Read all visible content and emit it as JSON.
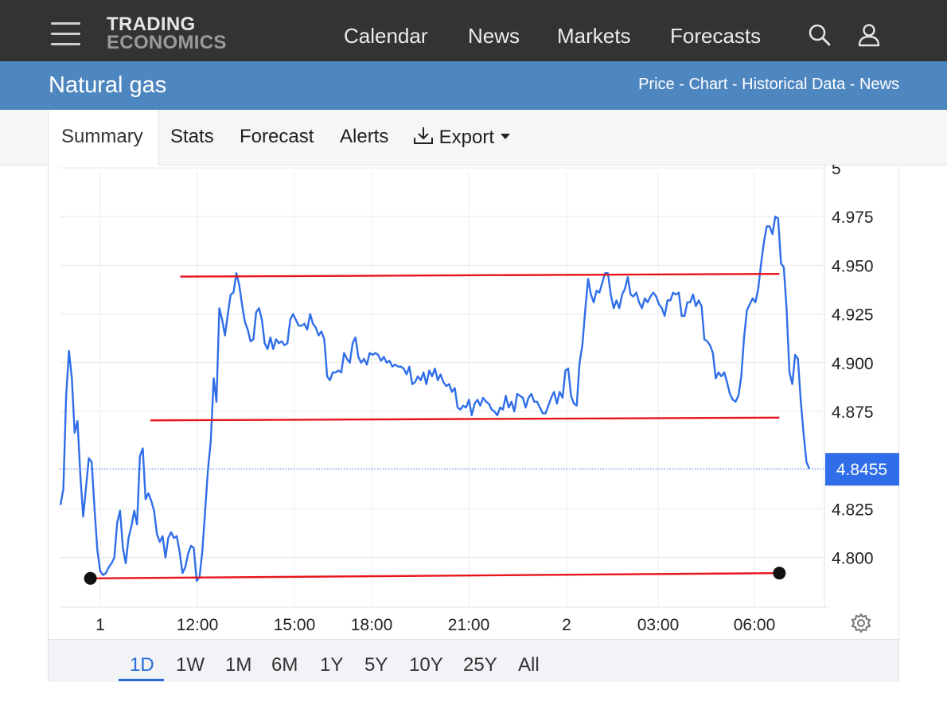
{
  "header": {
    "logo_line1": "TRADING",
    "logo_line2": "ECONOMICS",
    "nav": [
      "Calendar",
      "News",
      "Markets",
      "Forecasts"
    ]
  },
  "title_bar": {
    "title": "Natural gas",
    "links": [
      "Price",
      "Chart",
      "Historical Data",
      "News"
    ],
    "separator": " - "
  },
  "tabs": {
    "items": [
      "Summary",
      "Stats",
      "Forecast",
      "Alerts"
    ],
    "export_label": "Export",
    "active": "Summary"
  },
  "ranges": {
    "items": [
      "1D",
      "1W",
      "1M",
      "6M",
      "1Y",
      "5Y",
      "10Y",
      "25Y",
      "All"
    ],
    "active": "1D"
  },
  "colors": {
    "topbar": "#333333",
    "bluebar": "#4e86c0",
    "series": "#2f6ee8",
    "trendlines": "#e8141c",
    "last_price_badge": "#2f6ee8"
  },
  "chart_data": {
    "type": "line",
    "series": [
      {
        "values": [
          4.827,
          4.835,
          4.883,
          4.906,
          4.892,
          4.864,
          4.87,
          4.842,
          4.821,
          4.836,
          4.851,
          4.849,
          4.825,
          4.804,
          4.793,
          4.791,
          4.792,
          4.795,
          4.797,
          4.8,
          4.818,
          4.824,
          4.805,
          4.797,
          4.81,
          4.816,
          4.824,
          4.817,
          4.852,
          4.856,
          4.83,
          4.833,
          4.829,
          4.824,
          4.812,
          4.808,
          4.811,
          4.8,
          4.81,
          4.813,
          4.81,
          4.811,
          4.803,
          4.792,
          4.795,
          4.802,
          4.806,
          4.805,
          4.788,
          4.79,
          4.803,
          4.824,
          4.845,
          4.86,
          4.892,
          4.88,
          4.928,
          4.922,
          4.914,
          4.925,
          4.935,
          4.936,
          4.946,
          4.94,
          4.93,
          4.921,
          4.917,
          4.911,
          4.912,
          4.926,
          4.928,
          4.922,
          4.91,
          4.907,
          4.913,
          4.907,
          4.912,
          4.91,
          4.911,
          4.909,
          4.91,
          4.922,
          4.925,
          4.922,
          4.919,
          4.919,
          4.92,
          4.917,
          4.925,
          4.92,
          4.918,
          4.914,
          4.916,
          4.912,
          4.893,
          4.891,
          4.895,
          4.895,
          4.896,
          4.895,
          4.905,
          4.902,
          4.9,
          4.91,
          4.913,
          4.903,
          4.9,
          4.902,
          4.899,
          4.905,
          4.904,
          4.905,
          4.904,
          4.901,
          4.903,
          4.9,
          4.901,
          4.898,
          4.899,
          4.898,
          4.898,
          4.897,
          4.894,
          4.898,
          4.889,
          4.89,
          4.893,
          4.891,
          4.895,
          4.889,
          4.896,
          4.893,
          4.897,
          4.891,
          4.894,
          4.89,
          4.888,
          4.889,
          4.885,
          4.887,
          4.877,
          4.876,
          4.878,
          4.877,
          4.881,
          4.873,
          4.879,
          4.881,
          4.878,
          4.882,
          4.88,
          4.879,
          4.876,
          4.875,
          4.873,
          4.877,
          4.876,
          4.883,
          4.877,
          4.88,
          4.875,
          4.884,
          4.883,
          4.882,
          4.877,
          4.882,
          4.884,
          4.88,
          4.88,
          4.877,
          4.874,
          4.874,
          4.878,
          4.882,
          4.885,
          4.879,
          4.885,
          4.882,
          4.896,
          4.897,
          4.883,
          4.879,
          4.878,
          4.9,
          4.909,
          4.927,
          4.943,
          4.935,
          4.931,
          4.937,
          4.936,
          4.941,
          4.946,
          4.946,
          4.935,
          4.928,
          4.932,
          4.928,
          4.935,
          4.938,
          4.944,
          4.935,
          4.934,
          4.936,
          4.931,
          4.928,
          4.933,
          4.931,
          4.934,
          4.936,
          4.934,
          4.93,
          4.928,
          4.924,
          4.932,
          4.932,
          4.936,
          4.935,
          4.936,
          4.924,
          4.924,
          4.931,
          4.931,
          4.935,
          4.929,
          4.932,
          4.929,
          4.912,
          4.911,
          4.909,
          4.905,
          4.892,
          4.895,
          4.893,
          4.895,
          4.89,
          4.884,
          4.881,
          4.88,
          4.883,
          4.893,
          4.913,
          4.927,
          4.93,
          4.933,
          4.931,
          4.938,
          4.951,
          4.962,
          4.97,
          4.97,
          4.966,
          4.975,
          4.974,
          4.951,
          4.949,
          4.927,
          4.895,
          4.889,
          4.904,
          4.902,
          4.88,
          4.863,
          4.849,
          4.8455
        ]
      }
    ],
    "x_ticks": [
      "1",
      "12:00",
      "15:00",
      "18:00",
      "21:00",
      "2",
      "03:00",
      "06:00"
    ],
    "y_ticks": [
      4.8,
      4.825,
      4.875,
      4.9,
      4.925,
      4.95,
      4.975,
      5
    ],
    "y_tick_labels": [
      "4.800",
      "4.825",
      "4.875",
      "4.900",
      "4.925",
      "4.950",
      "4.975",
      "5"
    ],
    "ylim": [
      4.775,
      5.0
    ],
    "last_value_label": "4.8455",
    "last_value": 4.8455,
    "trendlines": [
      {
        "x": [
          0.04,
          0.96
        ],
        "y": [
          4.7893,
          4.792
        ]
      },
      {
        "x": [
          0.12,
          0.96
        ],
        "y": [
          4.8704,
          4.8718
        ]
      },
      {
        "x": [
          0.16,
          0.96
        ],
        "y": [
          4.9442,
          4.9456
        ]
      }
    ],
    "trendline_markers": [
      {
        "x": 0.04,
        "y": 4.7893
      },
      {
        "x": 0.96,
        "y": 4.792
      }
    ],
    "grid": true,
    "y_axis_position": "right"
  }
}
